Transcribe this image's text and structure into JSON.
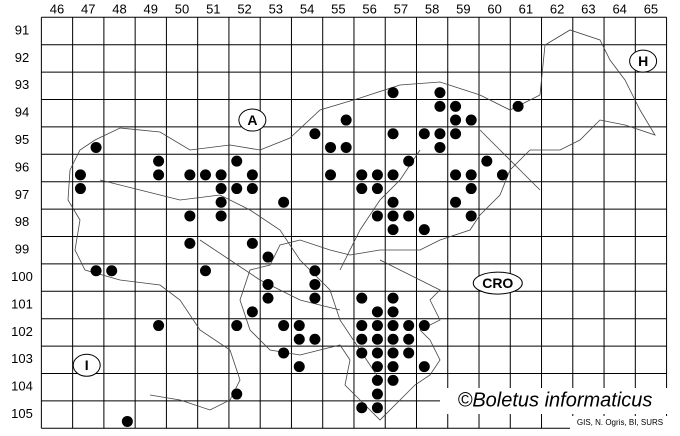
{
  "columns": [
    46,
    47,
    48,
    49,
    50,
    51,
    52,
    53,
    54,
    55,
    56,
    57,
    58,
    59,
    60,
    61,
    62,
    63,
    64,
    65
  ],
  "rows": [
    91,
    92,
    93,
    94,
    95,
    96,
    97,
    98,
    99,
    100,
    101,
    102,
    103,
    104,
    105
  ],
  "countries": [
    {
      "label": "A",
      "x": 52.25,
      "y": 94.25
    },
    {
      "label": "H",
      "x": 64.75,
      "y": 92.1
    },
    {
      "label": "I",
      "x": 46.95,
      "y": 103.2
    },
    {
      "label": "CRO",
      "x": 60.1,
      "y": 100.2
    }
  ],
  "copyright": "©Boletus informaticus",
  "credits": "GIS, N. Ogris, BI, SURS",
  "records": [
    [
      56.75,
      93.25
    ],
    [
      58.25,
      93.25
    ],
    [
      58.25,
      93.75
    ],
    [
      58.75,
      93.75
    ],
    [
      60.75,
      93.75
    ],
    [
      55.25,
      94.25
    ],
    [
      58.75,
      94.25
    ],
    [
      59.25,
      94.25
    ],
    [
      54.25,
      94.75
    ],
    [
      56.75,
      94.75
    ],
    [
      57.75,
      94.75
    ],
    [
      58.25,
      94.75
    ],
    [
      58.75,
      94.75
    ],
    [
      47.25,
      95.25
    ],
    [
      54.75,
      95.25
    ],
    [
      55.25,
      95.25
    ],
    [
      58.25,
      95.25
    ],
    [
      49.25,
      95.75
    ],
    [
      51.75,
      95.75
    ],
    [
      57.25,
      95.75
    ],
    [
      59.75,
      95.75
    ],
    [
      46.75,
      96.25
    ],
    [
      49.25,
      96.25
    ],
    [
      50.25,
      96.25
    ],
    [
      50.75,
      96.25
    ],
    [
      51.25,
      96.25
    ],
    [
      52.25,
      96.25
    ],
    [
      54.75,
      96.25
    ],
    [
      55.75,
      96.25
    ],
    [
      56.25,
      96.25
    ],
    [
      56.75,
      96.25
    ],
    [
      58.75,
      96.25
    ],
    [
      59.25,
      96.25
    ],
    [
      60.25,
      96.25
    ],
    [
      46.75,
      96.75
    ],
    [
      51.25,
      96.75
    ],
    [
      51.75,
      96.75
    ],
    [
      52.25,
      96.75
    ],
    [
      55.75,
      96.75
    ],
    [
      56.25,
      96.75
    ],
    [
      59.25,
      96.75
    ],
    [
      51.25,
      97.25
    ],
    [
      53.25,
      97.25
    ],
    [
      56.75,
      97.25
    ],
    [
      58.75,
      97.25
    ],
    [
      50.25,
      97.75
    ],
    [
      51.25,
      97.75
    ],
    [
      56.25,
      97.75
    ],
    [
      56.75,
      97.75
    ],
    [
      57.25,
      97.75
    ],
    [
      59.25,
      97.75
    ],
    [
      56.75,
      98.25
    ],
    [
      57.75,
      98.25
    ],
    [
      50.25,
      98.75
    ],
    [
      52.25,
      98.75
    ],
    [
      52.75,
      99.25
    ],
    [
      47.25,
      99.75
    ],
    [
      47.75,
      99.75
    ],
    [
      50.75,
      99.75
    ],
    [
      54.25,
      99.75
    ],
    [
      52.75,
      100.25
    ],
    [
      54.25,
      100.25
    ],
    [
      52.75,
      100.75
    ],
    [
      54.25,
      100.75
    ],
    [
      55.75,
      100.75
    ],
    [
      56.75,
      100.75
    ],
    [
      52.25,
      101.25
    ],
    [
      56.25,
      101.25
    ],
    [
      56.75,
      101.25
    ],
    [
      49.25,
      101.75
    ],
    [
      51.75,
      101.75
    ],
    [
      53.25,
      101.75
    ],
    [
      53.75,
      101.75
    ],
    [
      55.75,
      101.75
    ],
    [
      56.25,
      101.75
    ],
    [
      56.75,
      101.75
    ],
    [
      57.25,
      101.75
    ],
    [
      57.75,
      101.75
    ],
    [
      53.75,
      102.25
    ],
    [
      54.25,
      102.25
    ],
    [
      55.75,
      102.25
    ],
    [
      56.25,
      102.25
    ],
    [
      56.75,
      102.25
    ],
    [
      57.25,
      102.25
    ],
    [
      53.25,
      102.75
    ],
    [
      55.75,
      102.75
    ],
    [
      56.25,
      102.75
    ],
    [
      56.75,
      102.75
    ],
    [
      57.25,
      102.75
    ],
    [
      53.75,
      103.25
    ],
    [
      56.25,
      103.25
    ],
    [
      56.75,
      103.25
    ],
    [
      57.75,
      103.25
    ],
    [
      56.25,
      103.75
    ],
    [
      56.75,
      103.75
    ],
    [
      51.75,
      104.25
    ],
    [
      56.25,
      104.25
    ],
    [
      55.75,
      104.75
    ],
    [
      56.25,
      104.75
    ],
    [
      48.25,
      105.25
    ]
  ]
}
